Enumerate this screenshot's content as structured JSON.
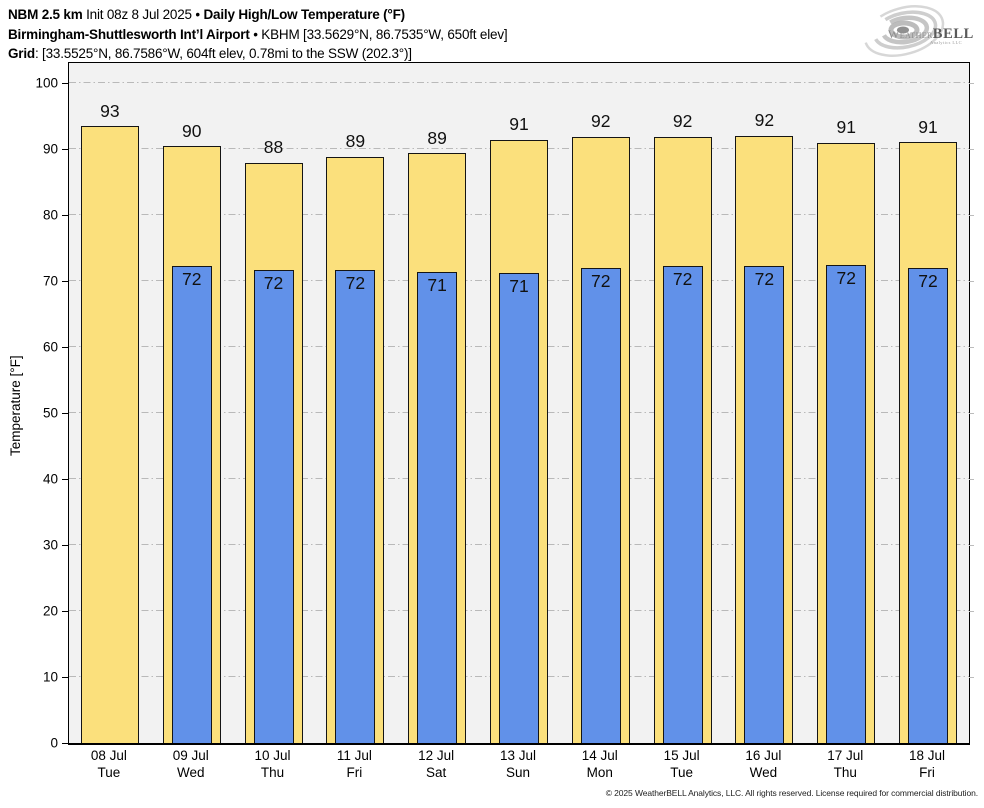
{
  "header": {
    "line1": {
      "model": "NBM 2.5 km",
      "init": " Init 08z 8 Jul 2025 ",
      "bullet": "• ",
      "title": "Daily High/Low Temperature (°F)"
    },
    "line2": {
      "station": "Birmingham-Shuttlesworth Int’l Airport",
      "details": " • KBHM [33.5629°N, 86.7535°W, 650ft elev]"
    },
    "line3": {
      "label": "Grid",
      "details": ": [33.5525°N, 86.7586°W, 604ft elev, 0.78mi to the SSW (202.3°)]"
    }
  },
  "logo": {
    "name_part1": "Weather",
    "name_part2": "BELL",
    "subtitle": "Analytics LLC"
  },
  "chart_data": {
    "type": "bar",
    "title": "Daily High/Low Temperature (°F)",
    "ylabel": "Temperature [°F]",
    "ylim": [
      0,
      103
    ],
    "yticks": [
      0,
      10,
      20,
      30,
      40,
      50,
      60,
      70,
      80,
      90,
      100
    ],
    "grid": "horizontal dash-dot gridlines every 10°F",
    "legend": "none",
    "plot_background": "#f2f2f2",
    "categories": [
      {
        "date": "08 Jul",
        "day": "Tue"
      },
      {
        "date": "09 Jul",
        "day": "Wed"
      },
      {
        "date": "10 Jul",
        "day": "Thu"
      },
      {
        "date": "11 Jul",
        "day": "Fri"
      },
      {
        "date": "12 Jul",
        "day": "Sat"
      },
      {
        "date": "13 Jul",
        "day": "Sun"
      },
      {
        "date": "14 Jul",
        "day": "Mon"
      },
      {
        "date": "15 Jul",
        "day": "Tue"
      },
      {
        "date": "16 Jul",
        "day": "Wed"
      },
      {
        "date": "17 Jul",
        "day": "Thu"
      },
      {
        "date": "18 Jul",
        "day": "Fri"
      }
    ],
    "series": [
      {
        "name": "Daily High",
        "color": "#fbe07c",
        "labels": [
          93,
          90,
          88,
          89,
          89,
          91,
          92,
          92,
          92,
          91,
          91
        ],
        "values": [
          93.4,
          90.4,
          87.9,
          88.8,
          89.3,
          91.4,
          91.8,
          91.8,
          92.0,
          90.9,
          91.0
        ]
      },
      {
        "name": "Daily Low",
        "color": "#6191e9",
        "labels": [
          null,
          72,
          72,
          72,
          71,
          71,
          72,
          72,
          72,
          72,
          72
        ],
        "values": [
          null,
          72.2,
          71.6,
          71.6,
          71.4,
          71.2,
          72.0,
          72.2,
          72.3,
          72.4,
          72.0
        ]
      }
    ]
  },
  "footer": {
    "copyright": "© 2025 WeatherBELL Analytics, LLC. All rights reserved. License required for commercial distribution."
  }
}
